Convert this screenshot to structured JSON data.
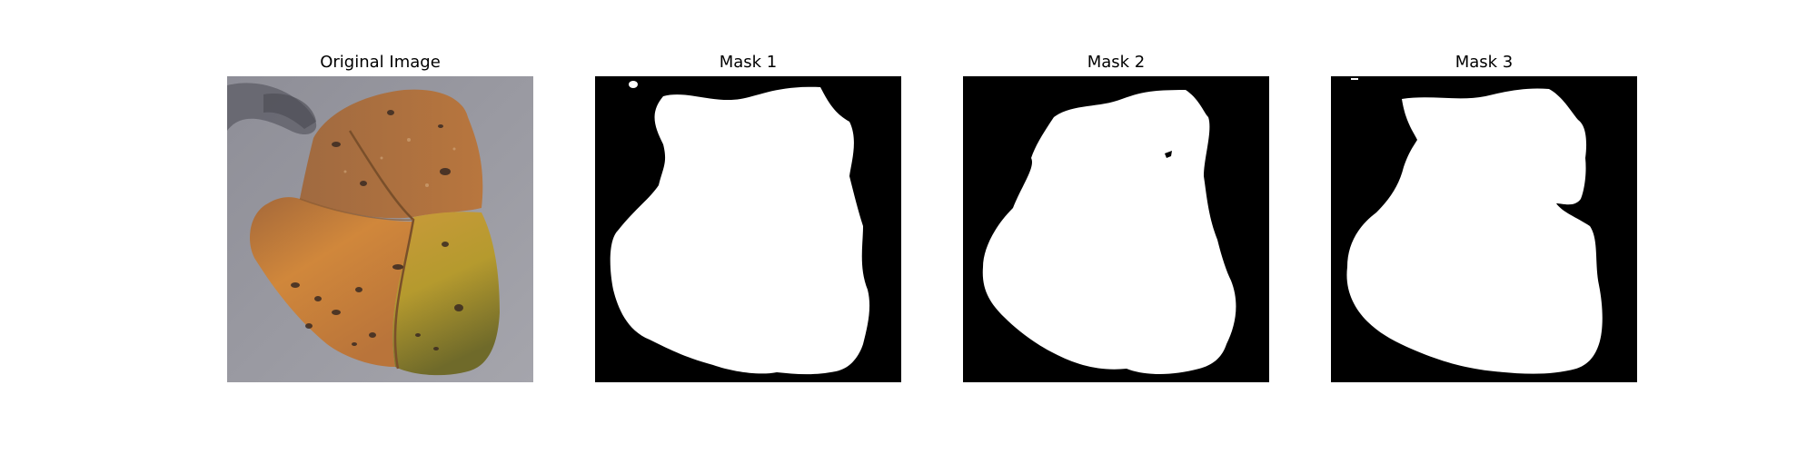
{
  "panels": [
    {
      "title": "Original Image"
    },
    {
      "title": "Mask 1"
    },
    {
      "title": "Mask 2"
    },
    {
      "title": "Mask 3"
    }
  ],
  "colors": {
    "background": "#ffffff",
    "mask_foreground": "#ffffff",
    "mask_background": "#000000",
    "photo_background_gray": "#8f8f96",
    "leaf_orange": "#c8873a",
    "leaf_brown": "#9a6a3a",
    "leaf_yellow_green": "#b8a030",
    "leaf_spot_dark": "#3a2a22"
  }
}
